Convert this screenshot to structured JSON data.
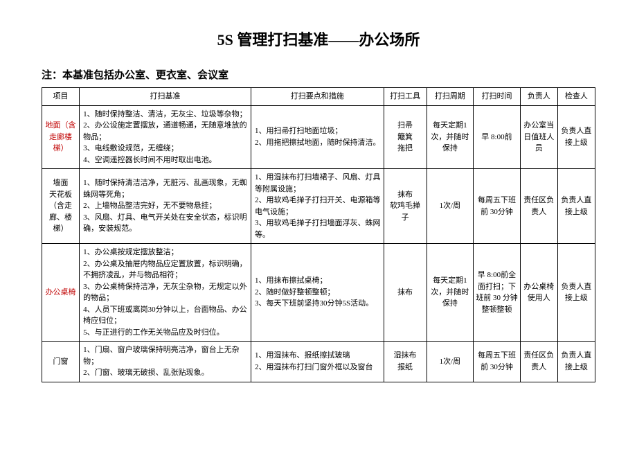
{
  "title": "5S 管理打扫基准——办公场所",
  "note": "注：本基准包括办公室、更衣室、会议室",
  "headers": {
    "item": "项目",
    "standard": "打扫基准",
    "points": "打扫要点和措施",
    "tools": "打扫工具",
    "cycle": "打扫周期",
    "time": "打扫时间",
    "owner": "负责人",
    "checker": "检查人"
  },
  "rows": [
    {
      "item": "地面（含走廊楼梯）",
      "item_red": true,
      "standard": "1、随时保持整洁、清洁，无灰尘、垃圾等杂物；\n2、办公设施定置摆放，通道畅通，无随意堆放的物品；\n3、电线敷设规范，无缠绕；\n4、空调遥控器长时间不用时取出电池。",
      "points": "1、用扫帚打扫地面垃圾；\n2、用拖把擦拭地面，随时保持清洁。",
      "tools": "扫帚\n簸箕\n拖把",
      "cycle": "每天定期1次，并随时保持",
      "time": "早 8:00前",
      "owner": "办公室当日值班人员",
      "checker": "负责人直接上级"
    },
    {
      "item": "墙面\n天花板\n（含走廊、楼梯）",
      "item_red": false,
      "standard": "1、随时保持清洁洁净，无脏污、乱画现象，无蜘蛛网等死角；\n2、上墙物品整洁完好，无不要物悬挂；\n3、风扇、灯具、电气开关处在安全状态，标识明确，安装规范。",
      "points": "1、用湿抹布打扫墙裙子、风扇、灯具等附属设施；\n2、用软鸡毛掸子打扫开关、电源箱等电气设施；\n3、用软鸡毛掸子打扫墙面浮灰、蛛网等。",
      "tools": "抹布\n软鸡毛掸子",
      "cycle": "1次/周",
      "time": "每周五下班前 30分钟",
      "owner": "责任区负责人",
      "checker": "负责人直接上级"
    },
    {
      "item": "办公桌椅",
      "item_red": true,
      "standard": "1、办公桌按规定摆放整洁；\n2、办公桌及抽屉内物品应定置放置，标识明确，不拥挤凌乱，并与物品相符；\n3、办公桌椅保持洁净，无灰尘杂物，无规定以外的物品；\n4、人员下班或离岗30分钟以上，台面物品、办公椅应归位；\n5、与正进行的工作无关物品应及时归位。",
      "points": "1、用抹布擦拭桌椅；\n2、随时做好整顿整顿；\n3、每天下班前坚持30分钟5S活动。",
      "tools": "抹布",
      "cycle": "每天定期1次，并随时保持",
      "time": "早 8:00前全面打扫；下班前 30 分钟整顿整顿",
      "owner": "办公桌椅使用人",
      "checker": "负责人直接上级"
    },
    {
      "item": "门窗",
      "item_red": false,
      "standard": "1、门扇、窗户玻璃保持明亮洁净，窗台上无杂物；\n2、门窗、玻璃无破损、乱张贴现象。",
      "points": "1、用湿抹布、报纸擦拭玻璃\n2、用湿抹布打扫门窗外框以及窗台",
      "tools": "湿抹布\n报纸",
      "cycle": "1次/周",
      "time": "每周五下班前 30分钟",
      "owner": "责任区负责人",
      "checker": "负责人直接上级"
    }
  ]
}
